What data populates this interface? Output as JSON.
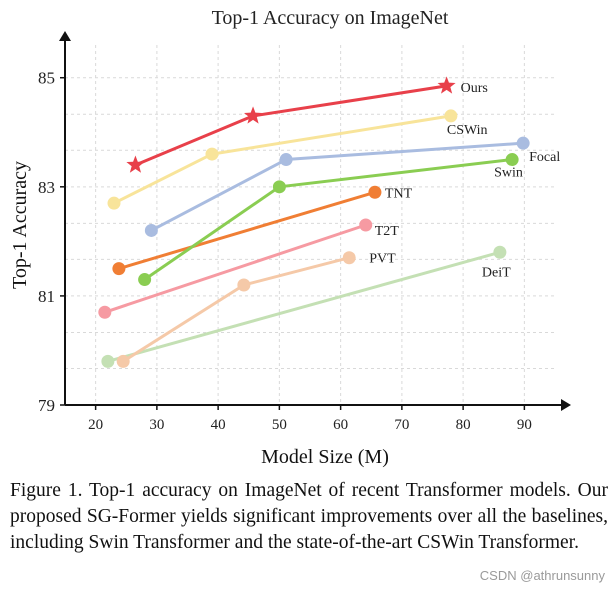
{
  "chart_data": {
    "type": "line",
    "title": "Top-1 Accuracy on ImageNet",
    "xlabel": "Model Size (M)",
    "ylabel": "Top-1 Accuracy",
    "xlim": [
      15,
      95
    ],
    "ylim": [
      79,
      85.6
    ],
    "xticks": [
      20,
      30,
      40,
      50,
      60,
      70,
      80,
      90
    ],
    "yticks": [
      79,
      81,
      83,
      85
    ],
    "series": [
      {
        "name": "Ours",
        "color": "#e8404a",
        "marker": "star",
        "x": [
          26.5,
          45.7,
          77.3
        ],
        "y": [
          83.4,
          84.3,
          84.85
        ]
      },
      {
        "name": "CSWin",
        "color": "#f8e49a",
        "marker": "circle",
        "x": [
          23,
          39,
          78
        ],
        "y": [
          82.7,
          83.6,
          84.3
        ]
      },
      {
        "name": "Focal",
        "color": "#a9bce0",
        "marker": "circle",
        "x": [
          29.1,
          51.1,
          89.8
        ],
        "y": [
          82.2,
          83.5,
          83.8
        ]
      },
      {
        "name": "Swin",
        "color": "#8acd52",
        "marker": "circle",
        "x": [
          28,
          50,
          88
        ],
        "y": [
          81.3,
          83.0,
          83.5
        ]
      },
      {
        "name": "TNT",
        "color": "#f07e34",
        "marker": "circle",
        "x": [
          23.8,
          65.6
        ],
        "y": [
          81.5,
          82.9
        ]
      },
      {
        "name": "T2T",
        "color": "#f69aa2",
        "marker": "circle",
        "x": [
          21.5,
          64.1
        ],
        "y": [
          80.7,
          82.3
        ]
      },
      {
        "name": "PVT",
        "color": "#f5c9a8",
        "marker": "circle",
        "x": [
          24.5,
          44.2,
          61.4
        ],
        "y": [
          79.8,
          81.2,
          81.7
        ]
      },
      {
        "name": "DeiT",
        "color": "#c4e0b4",
        "marker": "circle",
        "x": [
          22,
          86
        ],
        "y": [
          79.8,
          81.8
        ]
      }
    ]
  },
  "caption": "Figure 1. Top-1 accuracy on ImageNet of recent Transformer models. Our proposed SG-Former yields significant improvements over all the baselines, including Swin Transformer and the state-of-the-art CSWin Transformer.",
  "watermark": "CSDN @athrunsunny"
}
